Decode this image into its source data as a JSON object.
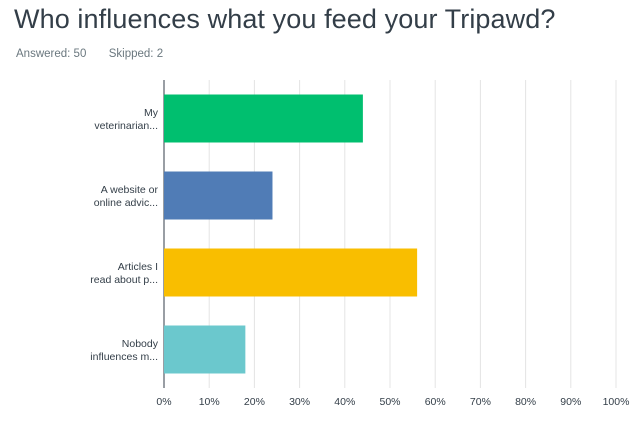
{
  "title": "Who influences what you feed your Tripawd?",
  "stats": {
    "answered_label": "Answered:",
    "answered_value": "50",
    "skipped_label": "Skipped:",
    "skipped_value": "2"
  },
  "chart_data": {
    "type": "bar",
    "orientation": "horizontal",
    "categories": [
      [
        "My",
        "veterinarian..."
      ],
      [
        "A website or",
        "online advic..."
      ],
      [
        "Articles I",
        "read about p..."
      ],
      [
        "Nobody",
        "influences m..."
      ]
    ],
    "values": [
      44,
      24,
      56,
      18
    ],
    "bar_colors": [
      "#00bf6f",
      "#507cb6",
      "#f9be00",
      "#6bc8cd"
    ],
    "x_ticks": [
      "0%",
      "10%",
      "20%",
      "30%",
      "40%",
      "50%",
      "60%",
      "70%",
      "80%",
      "90%",
      "100%"
    ],
    "xlim": [
      0,
      100
    ],
    "grid": true,
    "grid_color": "#e4e4e4",
    "axis_color": "#333e48"
  }
}
